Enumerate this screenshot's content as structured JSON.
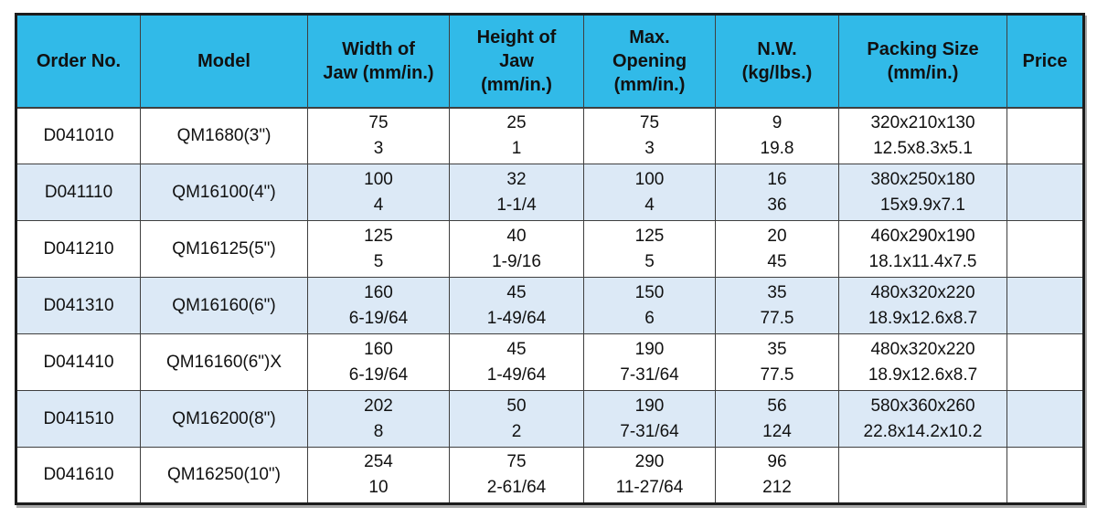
{
  "table": {
    "title": "bench-vise-specification-table",
    "colors": {
      "header_bg": "#31BAE8",
      "row_bg": "#FFFFFF",
      "alt_row_bg": "#DCE9F6",
      "border_outer": "#1C1C1C",
      "border_inner": "#3F3F3F",
      "text": "#111111"
    },
    "columns": [
      {
        "key": "order_no",
        "label": "Order No."
      },
      {
        "key": "model",
        "label": "Model"
      },
      {
        "key": "width_of_jaw",
        "label": "Width of\nJaw (mm/in.)"
      },
      {
        "key": "height_of_jaw",
        "label": "Height of\nJaw\n(mm/in.)"
      },
      {
        "key": "max_opening",
        "label": "Max.\nOpening\n(mm/in.)"
      },
      {
        "key": "nw",
        "label": "N.W.\n(kg/lbs.)"
      },
      {
        "key": "packing_size",
        "label": "Packing Size\n(mm/in.)"
      },
      {
        "key": "price",
        "label": "Price"
      }
    ],
    "rows": [
      {
        "order_no": "D041010",
        "model": "QM1680(3\")",
        "width_of_jaw": [
          "75",
          "3"
        ],
        "height_of_jaw": [
          "25",
          "1"
        ],
        "max_opening": [
          "75",
          "3"
        ],
        "nw": [
          "9",
          "19.8"
        ],
        "packing_size": [
          "320x210x130",
          "12.5x8.3x5.1"
        ],
        "price": ""
      },
      {
        "order_no": "D041110",
        "model": "QM16100(4\")",
        "width_of_jaw": [
          "100",
          "4"
        ],
        "height_of_jaw": [
          "32",
          "1-1/4"
        ],
        "max_opening": [
          "100",
          "4"
        ],
        "nw": [
          "16",
          "36"
        ],
        "packing_size": [
          "380x250x180",
          "15x9.9x7.1"
        ],
        "price": ""
      },
      {
        "order_no": "D041210",
        "model": "QM16125(5\")",
        "width_of_jaw": [
          "125",
          "5"
        ],
        "height_of_jaw": [
          "40",
          "1-9/16"
        ],
        "max_opening": [
          "125",
          "5"
        ],
        "nw": [
          "20",
          "45"
        ],
        "packing_size": [
          "460x290x190",
          "18.1x11.4x7.5"
        ],
        "price": ""
      },
      {
        "order_no": "D041310",
        "model": "QM16160(6\")",
        "width_of_jaw": [
          "160",
          "6-19/64"
        ],
        "height_of_jaw": [
          "45",
          "1-49/64"
        ],
        "max_opening": [
          "150",
          "6"
        ],
        "nw": [
          "35",
          "77.5"
        ],
        "packing_size": [
          "480x320x220",
          "18.9x12.6x8.7"
        ],
        "price": ""
      },
      {
        "order_no": "D041410",
        "model": "QM16160(6\")X",
        "width_of_jaw": [
          "160",
          "6-19/64"
        ],
        "height_of_jaw": [
          "45",
          "1-49/64"
        ],
        "max_opening": [
          "190",
          "7-31/64"
        ],
        "nw": [
          "35",
          "77.5"
        ],
        "packing_size": [
          "480x320x220",
          "18.9x12.6x8.7"
        ],
        "price": ""
      },
      {
        "order_no": "D041510",
        "model": "QM16200(8\")",
        "width_of_jaw": [
          "202",
          "8"
        ],
        "height_of_jaw": [
          "50",
          "2"
        ],
        "max_opening": [
          "190",
          "7-31/64"
        ],
        "nw": [
          "56",
          "124"
        ],
        "packing_size": [
          "580x360x260",
          "22.8x14.2x10.2"
        ],
        "price": ""
      },
      {
        "order_no": "D041610",
        "model": "QM16250(10\")",
        "width_of_jaw": [
          "254",
          "10"
        ],
        "height_of_jaw": [
          "75",
          "2-61/64"
        ],
        "max_opening": [
          "290",
          "11-27/64"
        ],
        "nw": [
          "96",
          "212"
        ],
        "packing_size": [
          "",
          ""
        ],
        "price": ""
      }
    ]
  }
}
